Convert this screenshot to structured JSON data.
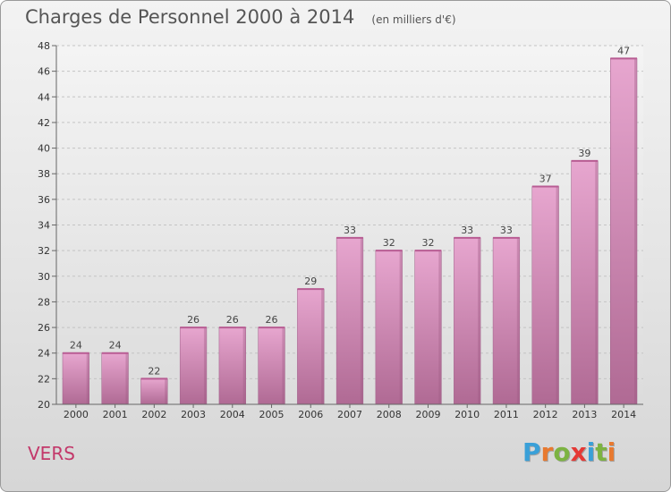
{
  "chart_data": {
    "type": "bar",
    "title": "Charges de Personnel 2000 à 2014",
    "subtitle": "(en milliers d'€)",
    "categories": [
      "2000",
      "2001",
      "2002",
      "2003",
      "2004",
      "2005",
      "2006",
      "2007",
      "2008",
      "2009",
      "2010",
      "2011",
      "2012",
      "2013",
      "2014"
    ],
    "values": [
      24,
      24,
      22,
      26,
      26,
      26,
      29,
      33,
      32,
      32,
      33,
      33,
      37,
      39,
      47
    ],
    "ylim": [
      20,
      48
    ],
    "yticks": [
      20,
      22,
      24,
      26,
      28,
      30,
      32,
      34,
      36,
      38,
      40,
      42,
      44,
      46,
      48
    ],
    "grid": true,
    "bar_color_top": "#e7a6cf",
    "bar_color_bottom": "#b06a94",
    "commune": "VERS",
    "commune_color": "#c3386a",
    "logo": {
      "text": "Proxiti",
      "letter_colors": [
        "#3aa0d8",
        "#e8792f",
        "#7cb342",
        "#e53935",
        "#3aa0d8",
        "#7cb342",
        "#e8792f"
      ]
    }
  }
}
